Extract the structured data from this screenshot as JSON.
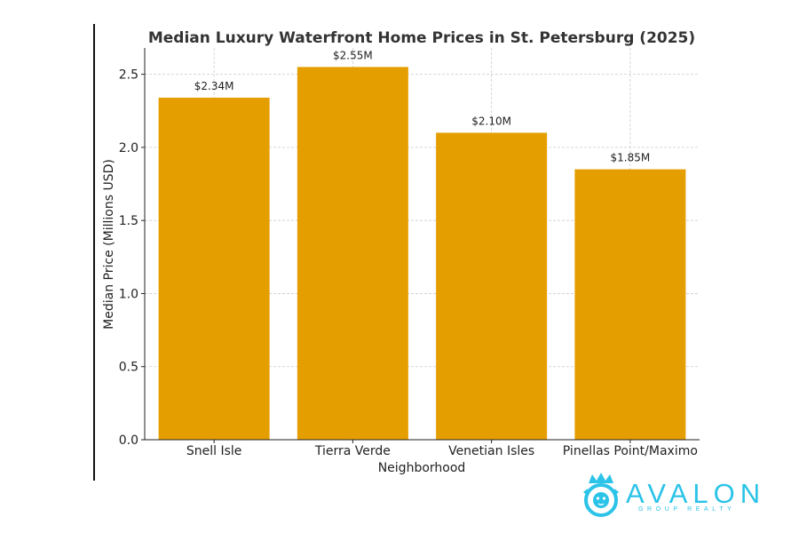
{
  "chart_data": {
    "type": "bar",
    "title": "Median Luxury Waterfront Home Prices in St. Petersburg (2025)",
    "xlabel": "Neighborhood",
    "ylabel": "Median Price (Millions USD)",
    "categories": [
      "Snell Isle",
      "Tierra Verde",
      "Venetian Isles",
      "Pinellas Point/Maximo"
    ],
    "values": [
      2.34,
      2.55,
      2.1,
      1.85
    ],
    "data_labels": [
      "$2.34M",
      "$2.55M",
      "$2.10M",
      "$1.85M"
    ],
    "yticks": [
      "0.0",
      "0.5",
      "1.0",
      "1.5",
      "2.0",
      "2.5"
    ],
    "ylim": [
      0,
      2.68
    ],
    "grid": true,
    "bar_color": "#e59e00"
  },
  "branding": {
    "logo_text": "AVALON",
    "logo_subtext": "GROUP REALTY",
    "logo_icon": "lion-crest-icon",
    "brand_color": "#2bc3e8"
  }
}
